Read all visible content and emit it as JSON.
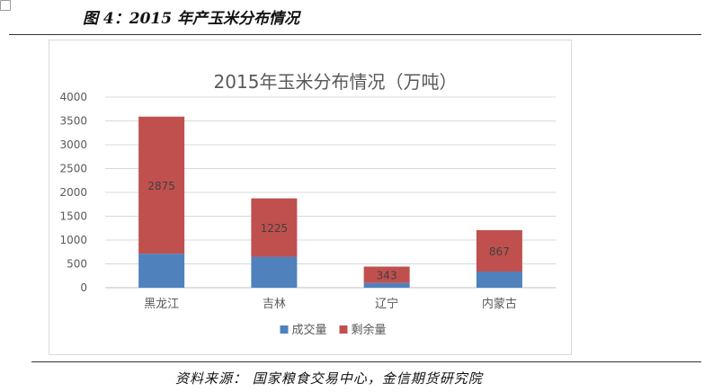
{
  "figure": {
    "title": "图 4：2015 年产玉米分布情况",
    "source": "资料来源：  国家粮食交易中心，金信期货研究院"
  },
  "chart_data": {
    "type": "bar",
    "stacked": true,
    "title": "2015年玉米分布情况（万吨）",
    "xlabel": "",
    "ylabel": "",
    "ylim": [
      0,
      4000
    ],
    "yticks": [
      0,
      500,
      1000,
      1500,
      2000,
      2500,
      3000,
      3500,
      4000
    ],
    "grid": true,
    "legend_position": "bottom",
    "categories": [
      "黑龙江",
      "吉林",
      "辽宁",
      "内蒙古"
    ],
    "series": [
      {
        "name": "成交量",
        "color": "#4F81BD",
        "values": [
          715,
          650,
          100,
          340
        ],
        "show_labels": false
      },
      {
        "name": "剩余量",
        "color": "#C0504D",
        "values": [
          2875,
          1225,
          343,
          867
        ],
        "show_labels": true
      }
    ]
  }
}
